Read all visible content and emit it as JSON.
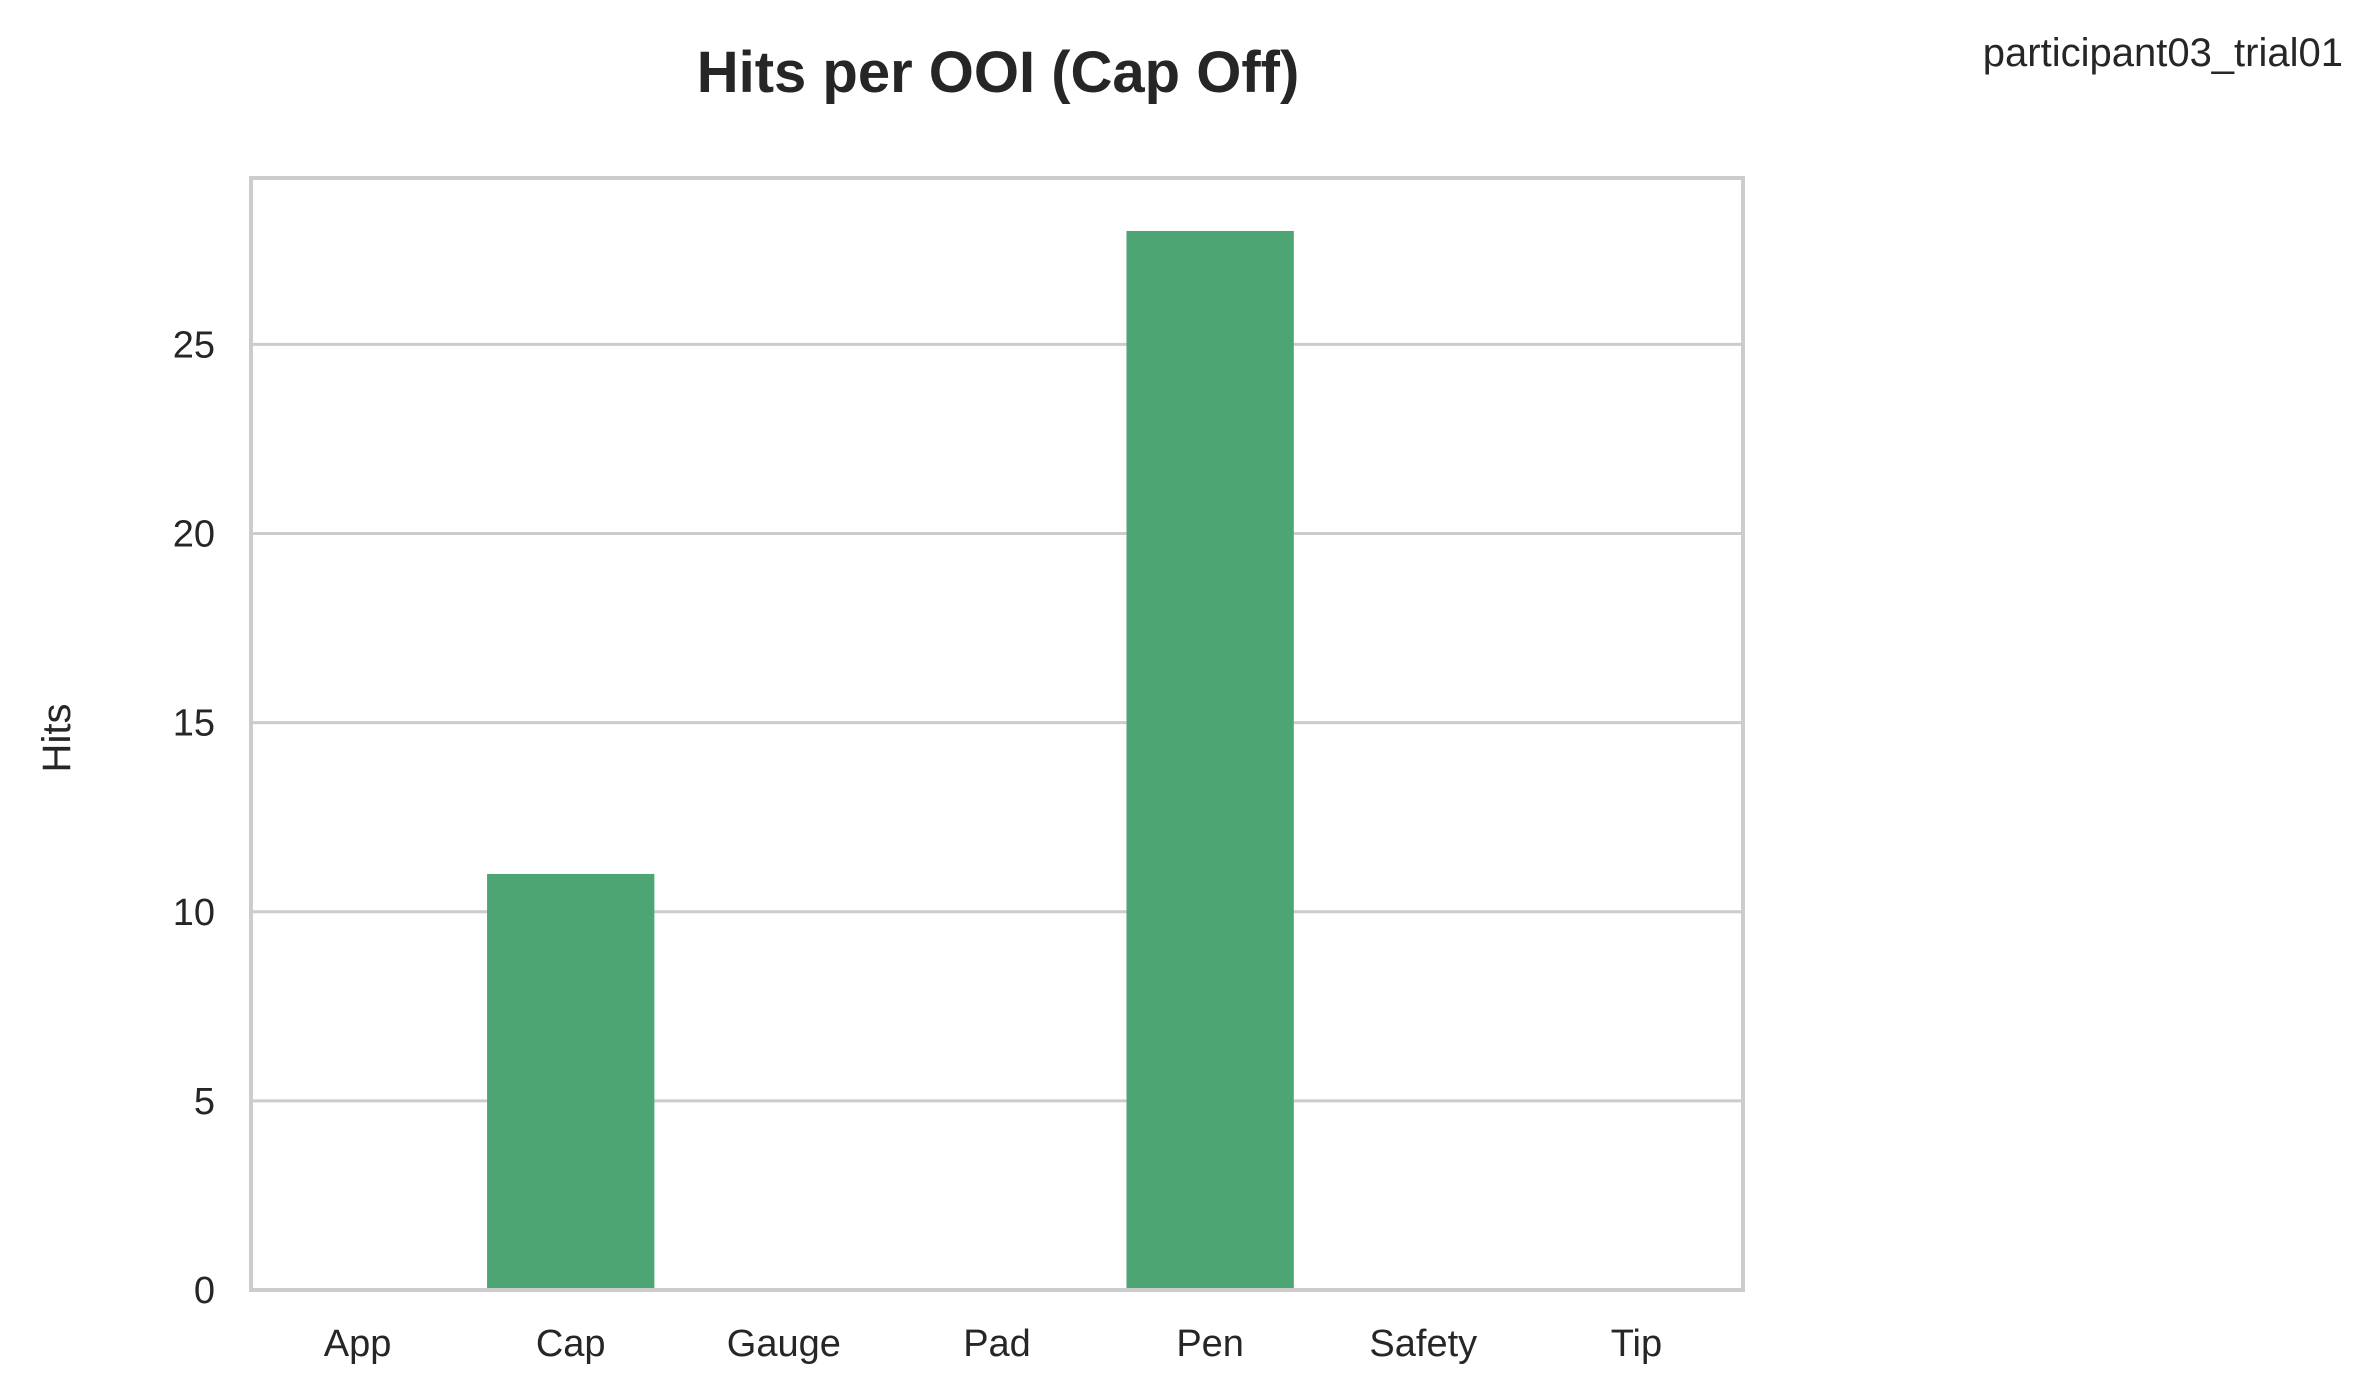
{
  "corner_label": "participant03_trial01",
  "colors": {
    "bar": "#4ca572",
    "grid": "#cccccc",
    "frame": "#cccccc",
    "text": "#262626"
  },
  "chart_data": {
    "type": "bar",
    "title": "Hits per OOI (Cap Off)",
    "xlabel": "",
    "ylabel": "Hits",
    "categories": [
      "App",
      "Cap",
      "Gauge",
      "Pad",
      "Pen",
      "Safety",
      "Tip"
    ],
    "values": [
      0,
      11,
      0,
      0,
      28,
      0,
      0
    ],
    "ylim": [
      0,
      29.4
    ],
    "yticks": [
      0,
      5,
      10,
      15,
      20,
      25
    ],
    "grid": "horizontal",
    "legend": "none"
  }
}
